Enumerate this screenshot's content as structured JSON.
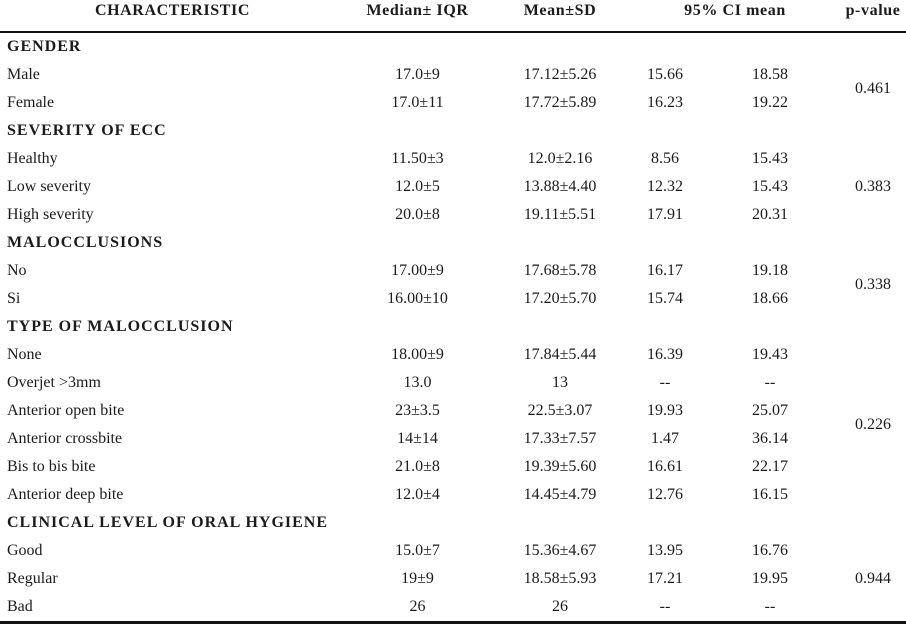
{
  "table": {
    "columns": {
      "characteristic": "CHARACTERISTIC",
      "median": "Median± IQR",
      "mean": "Mean±SD",
      "ci": "95% CI mean",
      "p": "p-value"
    },
    "sections": [
      {
        "title": "GENDER",
        "p_value": "0.461",
        "rows": [
          {
            "label": "Male",
            "median": "17.0±9",
            "mean": "17.12±5.26",
            "ci_low": "15.66",
            "ci_high": "18.58"
          },
          {
            "label": "Female",
            "median": "17.0±11",
            "mean": "17.72±5.89",
            "ci_low": "16.23",
            "ci_high": "19.22"
          }
        ]
      },
      {
        "title": "SEVERITY OF ECC",
        "p_value": "0.383",
        "rows": [
          {
            "label": "Healthy",
            "median": "11.50±3",
            "mean": "12.0±2.16",
            "ci_low": "8.56",
            "ci_high": "15.43"
          },
          {
            "label": "Low severity",
            "median": "12.0±5",
            "mean": "13.88±4.40",
            "ci_low": "12.32",
            "ci_high": "15.43"
          },
          {
            "label": "High severity",
            "median": "20.0±8",
            "mean": "19.11±5.51",
            "ci_low": "17.91",
            "ci_high": "20.31"
          }
        ]
      },
      {
        "title": "MALOCCLUSIONS",
        "p_value": "0.338",
        "rows": [
          {
            "label": "No",
            "median": "17.00±9",
            "mean": "17.68±5.78",
            "ci_low": "16.17",
            "ci_high": "19.18"
          },
          {
            "label": "Si",
            "median": "16.00±10",
            "mean": "17.20±5.70",
            "ci_low": "15.74",
            "ci_high": "18.66"
          }
        ]
      },
      {
        "title": "TYPE OF MALOCCLUSION",
        "p_value": "0.226",
        "rows": [
          {
            "label": "None",
            "median": "18.00±9",
            "mean": "17.84±5.44",
            "ci_low": "16.39",
            "ci_high": "19.43"
          },
          {
            "label": "Overjet >3mm",
            "median": "13.0",
            "mean": "13",
            "ci_low": "--",
            "ci_high": "--"
          },
          {
            "label": "Anterior open bite",
            "median": "23±3.5",
            "mean": "22.5±3.07",
            "ci_low": "19.93",
            "ci_high": "25.07"
          },
          {
            "label": "Anterior crossbite",
            "median": "14±14",
            "mean": "17.33±7.57",
            "ci_low": "1.47",
            "ci_high": "36.14"
          },
          {
            "label": "Bis to bis bite",
            "median": "21.0±8",
            "mean": "19.39±5.60",
            "ci_low": "16.61",
            "ci_high": "22.17"
          },
          {
            "label": "Anterior deep bite",
            "median": "12.0±4",
            "mean": "14.45±4.79",
            "ci_low": "12.76",
            "ci_high": "16.15"
          }
        ]
      },
      {
        "title": "CLINICAL LEVEL OF ORAL HYGIENE",
        "p_value": "0.944",
        "rows": [
          {
            "label": "Good",
            "median": "15.0±7",
            "mean": "15.36±4.67",
            "ci_low": "13.95",
            "ci_high": "16.76"
          },
          {
            "label": "Regular",
            "median": "19±9",
            "mean": "18.58±5.93",
            "ci_low": "17.21",
            "ci_high": "19.95"
          },
          {
            "label": "Bad",
            "median": "26",
            "mean": "26",
            "ci_low": "--",
            "ci_high": "--"
          }
        ]
      }
    ]
  }
}
